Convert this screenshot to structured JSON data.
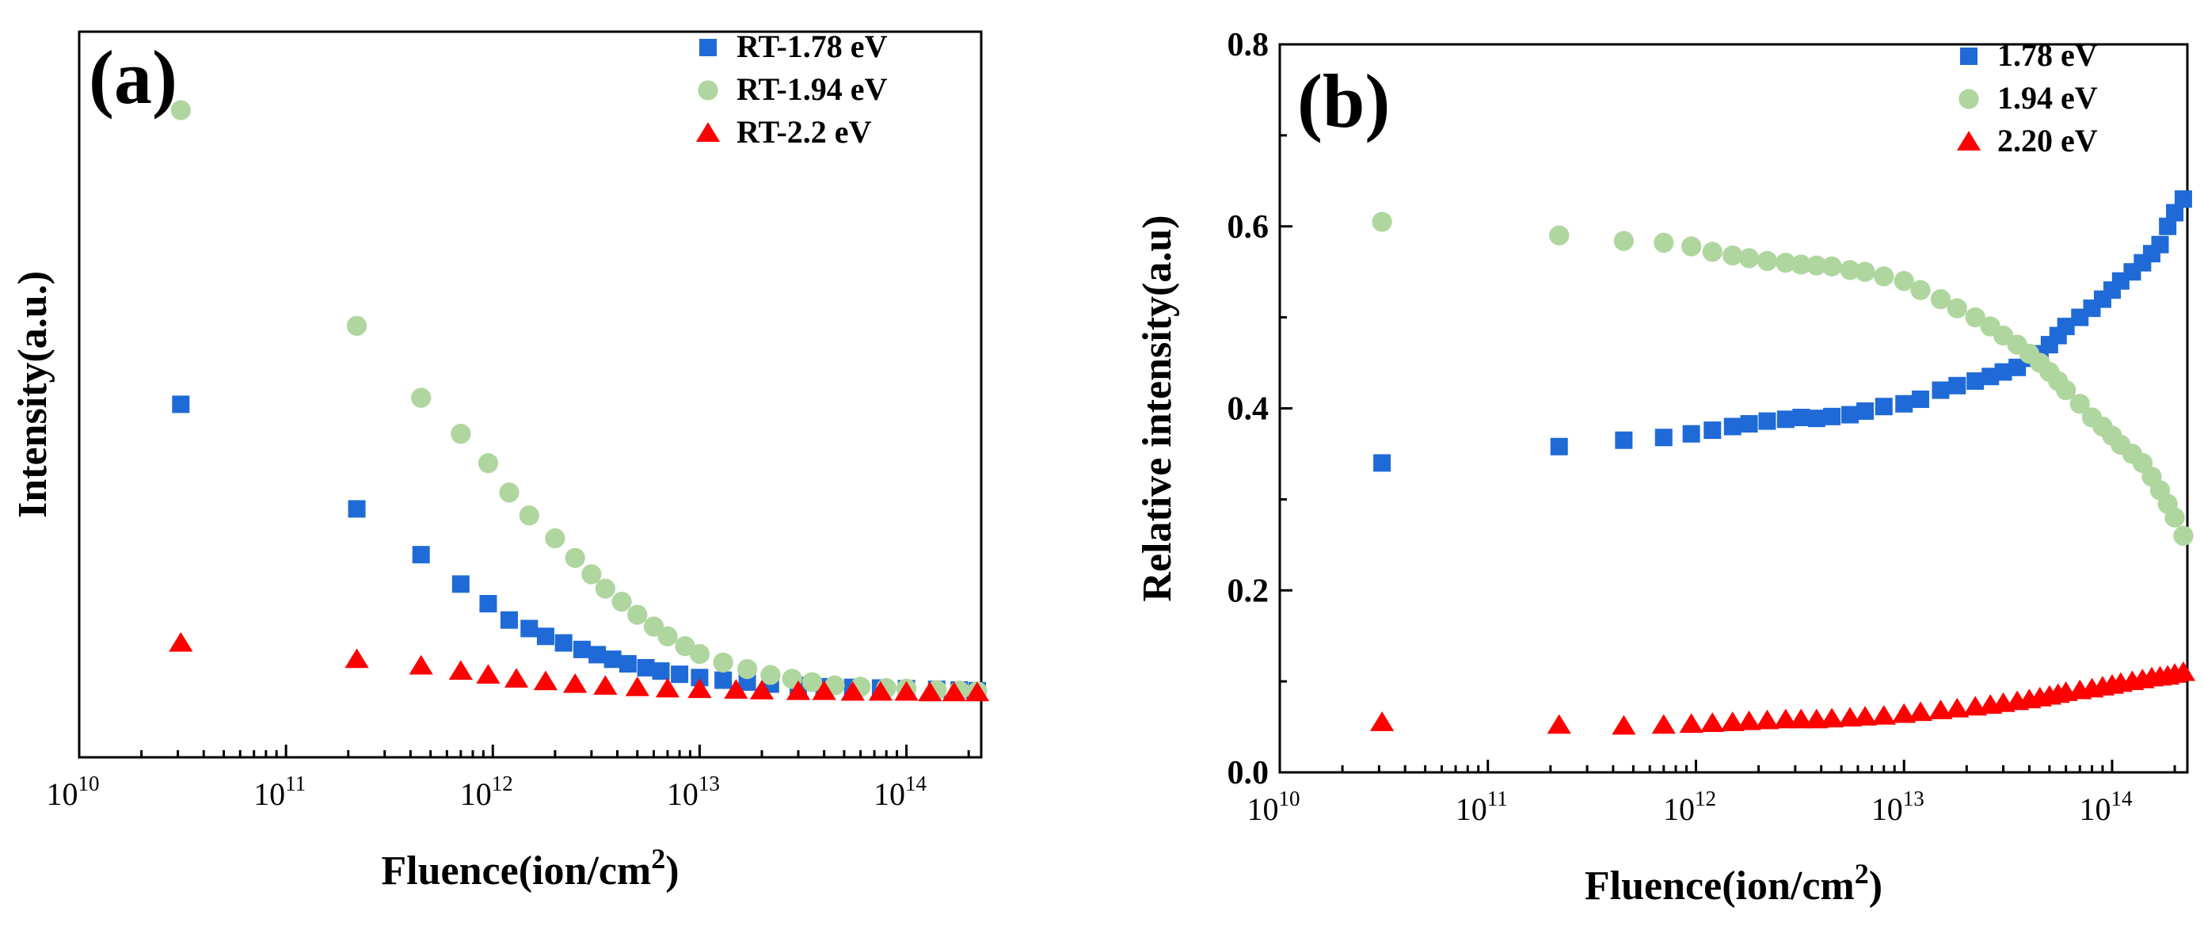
{
  "colors": {
    "blue": "#1f6ad7",
    "green": "#b0d6a0",
    "red": "#ff0000",
    "axis": "#000000"
  },
  "chart_data": [
    {
      "type": "scatter",
      "panel_label": "(a)",
      "xlabel": "Fluence(ion/cm2)",
      "xlabel_main": "Fluence(ion/cm",
      "xlabel_sup": "2",
      "xlabel_close": ")",
      "ylabel": "Intensity(a.u.)",
      "xscale": "log",
      "xlim": [
        10000000000.0,
        230000000000000.0
      ],
      "ylim": [
        -0.11,
        1.0
      ],
      "yticks_visible": false,
      "xtick_labels": [
        {
          "base": "10",
          "exp": "10",
          "value": 10000000000.0
        },
        {
          "base": "10",
          "exp": "11",
          "value": 100000000000.0
        },
        {
          "base": "10",
          "exp": "12",
          "value": 1000000000000.0
        },
        {
          "base": "10",
          "exp": "13",
          "value": 10000000000000.0
        },
        {
          "base": "10",
          "exp": "14",
          "value": 100000000000000.0
        }
      ],
      "legend_position": "top-right",
      "series": [
        {
          "name": "RT-1.78 eV",
          "marker": "square",
          "color": "blue",
          "x": [
            31000000000.0,
            220000000000.0,
            450000000000.0,
            700000000000.0,
            950000000000.0,
            1200000000000.0,
            1500000000000.0,
            1800000000000.0,
            2200000000000.0,
            2700000000000.0,
            3200000000000.0,
            3800000000000.0,
            4500000000000.0,
            5500000000000.0,
            6500000000000.0,
            8000000000000.0,
            10000000000000.0,
            13000000000000.0,
            17000000000000.0,
            22000000000000.0,
            30000000000000.0,
            40000000000000.0,
            55000000000000.0,
            75000000000000.0,
            100000000000000.0,
            140000000000000.0,
            180000000000000.0,
            220000000000000.0
          ],
          "y": [
            0.43,
            0.27,
            0.2,
            0.155,
            0.125,
            0.1,
            0.087,
            0.075,
            0.065,
            0.055,
            0.047,
            0.04,
            0.033,
            0.027,
            0.022,
            0.017,
            0.012,
            0.008,
            0.005,
            0.002,
            0.0,
            -0.002,
            -0.003,
            -0.004,
            -0.005,
            -0.006,
            -0.007,
            -0.008
          ]
        },
        {
          "name": "RT-1.94 eV",
          "marker": "circle",
          "color": "green",
          "x": [
            31000000000.0,
            220000000000.0,
            450000000000.0,
            700000000000.0,
            950000000000.0,
            1200000000000.0,
            1500000000000.0,
            2000000000000.0,
            2500000000000.0,
            3000000000000.0,
            3500000000000.0,
            4200000000000.0,
            5000000000000.0,
            6000000000000.0,
            7000000000000.0,
            8500000000000.0,
            10000000000000.0,
            13000000000000.0,
            17000000000000.0,
            22000000000000.0,
            28000000000000.0,
            35000000000000.0,
            45000000000000.0,
            60000000000000.0,
            80000000000000.0,
            100000000000000.0,
            140000000000000.0,
            180000000000000.0,
            220000000000000.0
          ],
          "y": [
            0.88,
            0.55,
            0.44,
            0.385,
            0.34,
            0.295,
            0.26,
            0.225,
            0.195,
            0.17,
            0.148,
            0.128,
            0.108,
            0.09,
            0.075,
            0.06,
            0.048,
            0.035,
            0.025,
            0.016,
            0.01,
            0.005,
            0.0,
            -0.002,
            -0.004,
            -0.005,
            -0.007,
            -0.008,
            -0.009
          ]
        },
        {
          "name": "RT-2.2 eV",
          "marker": "triangle",
          "color": "red",
          "x": [
            31000000000.0,
            220000000000.0,
            450000000000.0,
            700000000000.0,
            950000000000.0,
            1300000000000.0,
            1800000000000.0,
            2500000000000.0,
            3500000000000.0,
            5000000000000.0,
            7000000000000.0,
            10000000000000.0,
            15000000000000.0,
            20000000000000.0,
            30000000000000.0,
            40000000000000.0,
            55000000000000.0,
            75000000000000.0,
            100000000000000.0,
            130000000000000.0,
            170000000000000.0,
            220000000000000.0
          ],
          "y": [
            0.065,
            0.04,
            0.03,
            0.022,
            0.016,
            0.01,
            0.006,
            0.002,
            -0.001,
            -0.003,
            -0.005,
            -0.006,
            -0.007,
            -0.008,
            -0.009,
            -0.009,
            -0.01,
            -0.01,
            -0.01,
            -0.011,
            -0.011,
            -0.011
          ]
        }
      ]
    },
    {
      "type": "scatter",
      "panel_label": "(b)",
      "xlabel": "Fluence(ion/cm2)",
      "xlabel_main": "Fluence(ion/cm",
      "xlabel_sup": "2",
      "xlabel_close": ")",
      "ylabel": "Relative intensity(a.u)",
      "xscale": "log",
      "xlim": [
        10000000000.0,
        230000000000000.0
      ],
      "ylim": [
        0.0,
        0.8
      ],
      "yticks": [
        0.0,
        0.2,
        0.4,
        0.6,
        0.8
      ],
      "ytick_labels": [
        "0.0",
        "0.2",
        "0.4",
        "0.6",
        "0.8"
      ],
      "xtick_labels": [
        {
          "base": "10",
          "exp": "10",
          "value": 10000000000.0
        },
        {
          "base": "10",
          "exp": "11",
          "value": 100000000000.0
        },
        {
          "base": "10",
          "exp": "12",
          "value": 1000000000000.0
        },
        {
          "base": "10",
          "exp": "13",
          "value": 10000000000000.0
        },
        {
          "base": "10",
          "exp": "14",
          "value": 100000000000000.0
        }
      ],
      "legend_position": "top-right",
      "series": [
        {
          "name": "1.78 eV",
          "marker": "square",
          "color": "blue",
          "x": [
            31000000000.0,
            220000000000.0,
            450000000000.0,
            700000000000.0,
            950000000000.0,
            1200000000000.0,
            1500000000000.0,
            1800000000000.0,
            2200000000000.0,
            2700000000000.0,
            3200000000000.0,
            3800000000000.0,
            4500000000000.0,
            5500000000000.0,
            6500000000000.0,
            8000000000000.0,
            10000000000000.0,
            12000000000000.0,
            15000000000000.0,
            18000000000000.0,
            22000000000000.0,
            26000000000000.0,
            30000000000000.0,
            35000000000000.0,
            40000000000000.0,
            45000000000000.0,
            50000000000000.0,
            55000000000000.0,
            60000000000000.0,
            70000000000000.0,
            80000000000000.0,
            90000000000000.0,
            100000000000000.0,
            110000000000000.0,
            125000000000000.0,
            140000000000000.0,
            155000000000000.0,
            170000000000000.0,
            185000000000000.0,
            200000000000000.0,
            220000000000000.0
          ],
          "y": [
            0.34,
            0.358,
            0.365,
            0.368,
            0.372,
            0.376,
            0.38,
            0.383,
            0.386,
            0.388,
            0.39,
            0.389,
            0.391,
            0.393,
            0.397,
            0.402,
            0.405,
            0.41,
            0.42,
            0.425,
            0.43,
            0.435,
            0.44,
            0.445,
            0.455,
            0.46,
            0.47,
            0.48,
            0.49,
            0.5,
            0.51,
            0.52,
            0.53,
            0.54,
            0.55,
            0.56,
            0.57,
            0.58,
            0.6,
            0.615,
            0.63
          ]
        },
        {
          "name": "1.94 eV",
          "marker": "circle",
          "color": "green",
          "x": [
            31000000000.0,
            220000000000.0,
            450000000000.0,
            700000000000.0,
            950000000000.0,
            1200000000000.0,
            1500000000000.0,
            1800000000000.0,
            2200000000000.0,
            2700000000000.0,
            3200000000000.0,
            3800000000000.0,
            4500000000000.0,
            5500000000000.0,
            6500000000000.0,
            8000000000000.0,
            10000000000000.0,
            12000000000000.0,
            15000000000000.0,
            18000000000000.0,
            22000000000000.0,
            26000000000000.0,
            30000000000000.0,
            35000000000000.0,
            40000000000000.0,
            45000000000000.0,
            50000000000000.0,
            55000000000000.0,
            60000000000000.0,
            70000000000000.0,
            80000000000000.0,
            90000000000000.0,
            100000000000000.0,
            110000000000000.0,
            125000000000000.0,
            140000000000000.0,
            155000000000000.0,
            170000000000000.0,
            185000000000000.0,
            200000000000000.0,
            220000000000000.0
          ],
          "y": [
            0.605,
            0.59,
            0.584,
            0.582,
            0.578,
            0.572,
            0.568,
            0.565,
            0.562,
            0.56,
            0.558,
            0.557,
            0.556,
            0.552,
            0.55,
            0.545,
            0.54,
            0.53,
            0.52,
            0.51,
            0.5,
            0.49,
            0.48,
            0.47,
            0.46,
            0.45,
            0.44,
            0.43,
            0.42,
            0.405,
            0.39,
            0.38,
            0.37,
            0.36,
            0.35,
            0.34,
            0.325,
            0.31,
            0.295,
            0.28,
            0.26
          ]
        },
        {
          "name": "2.20 eV",
          "marker": "triangle",
          "color": "red",
          "x": [
            31000000000.0,
            220000000000.0,
            450000000000.0,
            700000000000.0,
            950000000000.0,
            1200000000000.0,
            1500000000000.0,
            1800000000000.0,
            2200000000000.0,
            2700000000000.0,
            3200000000000.0,
            3800000000000.0,
            4500000000000.0,
            5500000000000.0,
            6500000000000.0,
            8000000000000.0,
            10000000000000.0,
            12000000000000.0,
            15000000000000.0,
            18000000000000.0,
            22000000000000.0,
            26000000000000.0,
            30000000000000.0,
            35000000000000.0,
            40000000000000.0,
            45000000000000.0,
            50000000000000.0,
            55000000000000.0,
            60000000000000.0,
            70000000000000.0,
            80000000000000.0,
            90000000000000.0,
            100000000000000.0,
            110000000000000.0,
            125000000000000.0,
            140000000000000.0,
            155000000000000.0,
            170000000000000.0,
            185000000000000.0,
            200000000000000.0,
            220000000000000.0
          ],
          "y": [
            0.055,
            0.052,
            0.051,
            0.052,
            0.053,
            0.054,
            0.055,
            0.056,
            0.057,
            0.058,
            0.058,
            0.058,
            0.059,
            0.06,
            0.061,
            0.062,
            0.064,
            0.066,
            0.068,
            0.07,
            0.072,
            0.074,
            0.076,
            0.078,
            0.08,
            0.082,
            0.084,
            0.086,
            0.088,
            0.09,
            0.092,
            0.094,
            0.096,
            0.098,
            0.1,
            0.102,
            0.104,
            0.105,
            0.106,
            0.108,
            0.11
          ]
        }
      ]
    }
  ]
}
